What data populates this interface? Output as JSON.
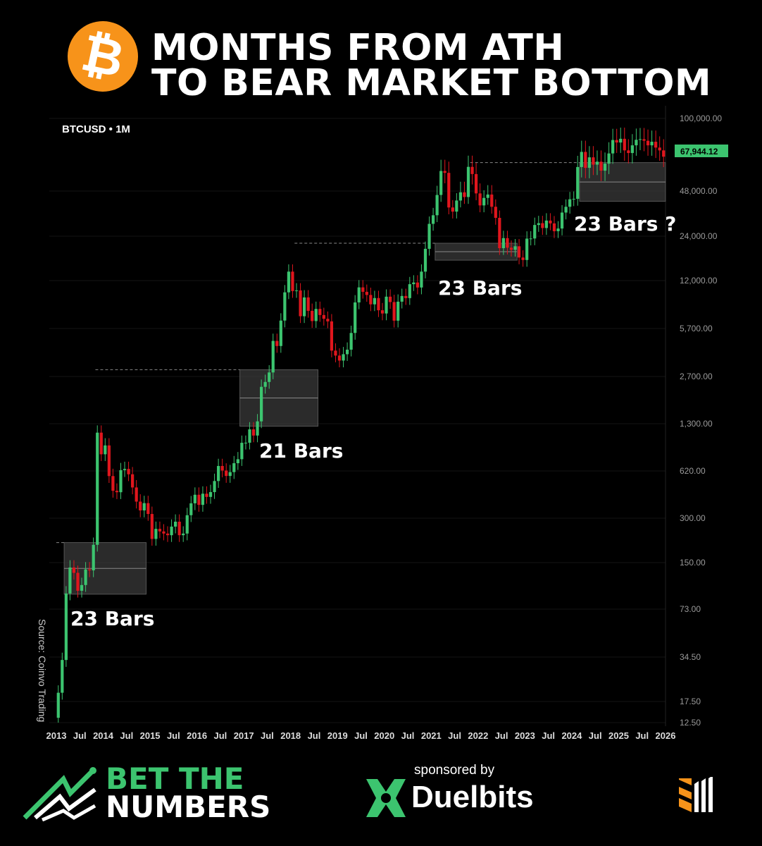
{
  "header": {
    "icon": "bitcoin-icon",
    "icon_glyph": "₿",
    "title_line1": "MONTHS FROM ATH",
    "title_line2": "TO BEAR MARKET BOTTOM"
  },
  "chart_data": {
    "type": "candlestick",
    "symbol_label": "BTCUSD • 1M",
    "y_scale": "log",
    "start": "2013-01",
    "interval": "1M",
    "closes": [
      20,
      33,
      93,
      139,
      128,
      97,
      106,
      135,
      133,
      198,
      1130,
      805,
      925,
      573,
      457,
      447,
      628,
      640,
      589,
      481,
      387,
      338,
      378,
      320,
      217,
      254,
      244,
      236,
      230,
      263,
      284,
      230,
      236,
      314,
      377,
      430,
      368,
      437,
      416,
      448,
      531,
      670,
      624,
      574,
      609,
      700,
      745,
      964,
      965,
      1190,
      1080,
      1348,
      2300,
      2480,
      2875,
      4700,
      4340,
      6450,
      10000,
      13800,
      10200,
      10300,
      6900,
      9240,
      7500,
      6400,
      7730,
      7030,
      6630,
      6370,
      4040,
      3740,
      3460,
      3820,
      4100,
      5320,
      8550,
      10800,
      10080,
      9600,
      8300,
      9150,
      7570,
      7200,
      9350,
      8600,
      6440,
      8650,
      9450,
      9140,
      11350,
      11650,
      10780,
      13800,
      19700,
      29000,
      33100,
      45200,
      58800,
      57700,
      37300,
      35000,
      41500,
      47100,
      43800,
      61300,
      57000,
      46300,
      38500,
      43200,
      45500,
      37700,
      31800,
      19900,
      23300,
      20050,
      19400,
      20500,
      17200,
      16550,
      23100,
      23150,
      28500,
      29300,
      27200,
      30500,
      29200,
      25900,
      27000,
      34500,
      37700,
      42300,
      42600,
      61200,
      71300,
      60700,
      67500,
      62700,
      64600,
      59000,
      63300,
      70200,
      80400,
      78400,
      81400,
      72400,
      70500,
      76200,
      80600,
      81100,
      79800,
      76200,
      79000,
      74500,
      72400,
      67944
    ],
    "open_first": 13.5,
    "y_ticks": [
      100000,
      48000,
      24000,
      12000,
      5700,
      2700,
      1300,
      620,
      300,
      150,
      73,
      34.5,
      17.5,
      12.5
    ],
    "y_tick_labels": [
      "100,000.00",
      "48,000.00",
      "24,000.00",
      "12,000.00",
      "5,700.00",
      "2,700.00",
      "1,300.00",
      "620.00",
      "300.00",
      "150.00",
      "73.00",
      "34.50",
      "17.50",
      "12.50"
    ],
    "x_tick_labels": [
      "2013",
      "Jul",
      "2014",
      "Jul",
      "2015",
      "Jul",
      "2016",
      "Jul",
      "2017",
      "Jul",
      "2018",
      "Jul",
      "2019",
      "Jul",
      "2020",
      "Jul",
      "2021",
      "Jul",
      "2022",
      "Jul",
      "2023",
      "Jul",
      "2024",
      "Jul",
      "2025",
      "Jul",
      "2026"
    ],
    "last_price": "67,944.12",
    "annotations": [
      "23 Bars",
      "21 Bars",
      "23 Bars",
      "23 Bars ?"
    ],
    "colors": {
      "up": "#3cc46f",
      "down": "#e0161d",
      "box": "#3a3a3a",
      "price_badge": "#3cc46f",
      "grid": "#151515"
    }
  },
  "source": "Source: Coinvo Trading",
  "footer": {
    "brand_line1": "BET THE",
    "brand_line2": "NUMBERS",
    "sponsored": "sponsored by",
    "sponsor": "Duelbits",
    "brand_color": "#3cc46f"
  }
}
